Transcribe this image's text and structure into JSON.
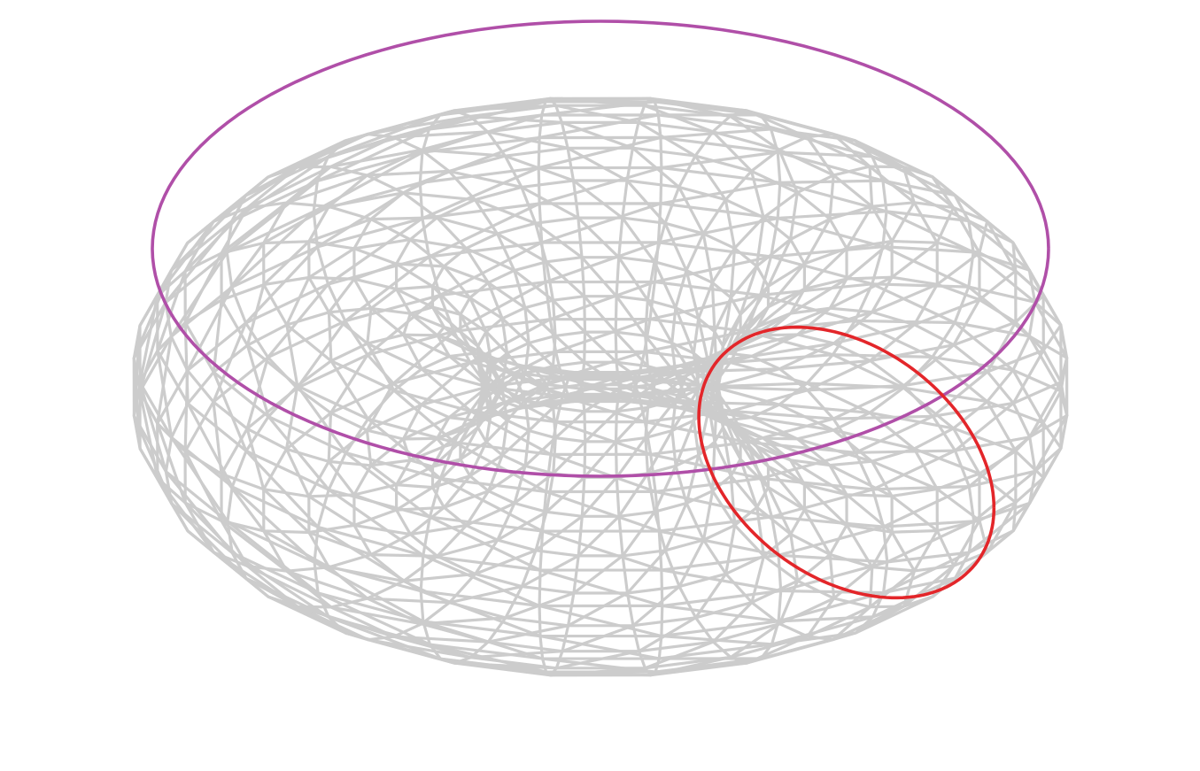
{
  "figure": {
    "description_kind": "wireframe-torus",
    "mesh": {
      "major_segments": 24,
      "minor_segments": 24,
      "color": "#cccccc"
    },
    "loops": [
      {
        "name": "longitude-loop",
        "kind": "around-hole",
        "color": "#b04fa8"
      },
      {
        "name": "meridian-loop",
        "kind": "around-tube",
        "color": "#e3262a"
      }
    ]
  }
}
